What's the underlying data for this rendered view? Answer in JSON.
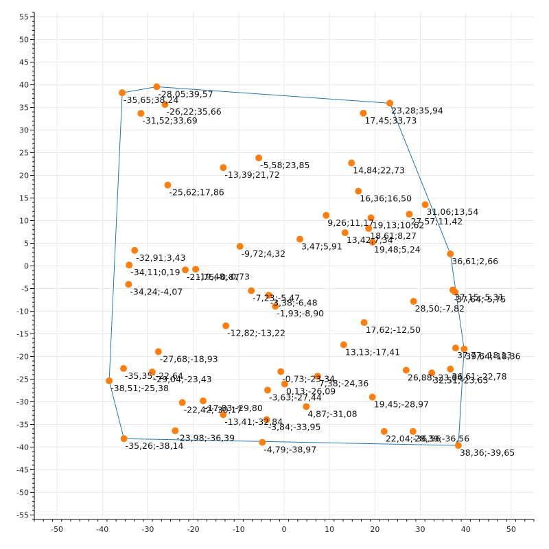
{
  "chart_data": {
    "type": "scatter",
    "title": "",
    "xlabel": "",
    "ylabel": "",
    "xlim": [
      -55,
      55
    ],
    "ylim": [
      -56,
      56
    ],
    "x_ticks": [
      -50,
      -40,
      -30,
      -20,
      -10,
      0,
      10,
      20,
      30,
      40,
      50
    ],
    "y_ticks": [
      55,
      50,
      45,
      40,
      35,
      30,
      25,
      20,
      15,
      10,
      5,
      0,
      -5,
      -10,
      -15,
      -20,
      -25,
      -30,
      -35,
      -40,
      -45,
      -50,
      -55
    ],
    "grid": true,
    "colors": {
      "points": "#ff7f0e",
      "hull": "#1f77b4",
      "grid": "#e8e8e8",
      "axis": "#000000"
    },
    "points": [
      {
        "x": -35.65,
        "y": 38.24,
        "label": "-35,65;38,24"
      },
      {
        "x": -28.05,
        "y": 39.57,
        "label": "-28,05;39,57"
      },
      {
        "x": -26.22,
        "y": 35.66,
        "label": "-26,22;35,66"
      },
      {
        "x": -31.52,
        "y": 33.69,
        "label": "-31,52;33,69"
      },
      {
        "x": 23.28,
        "y": 35.94,
        "label": "23,28;35,94"
      },
      {
        "x": 17.45,
        "y": 33.73,
        "label": "17,45;33,73"
      },
      {
        "x": -5.58,
        "y": 23.85,
        "label": "-5,58;23,85"
      },
      {
        "x": -13.39,
        "y": 21.72,
        "label": "-13,39;21,72"
      },
      {
        "x": 14.84,
        "y": 22.73,
        "label": "14,84;22,73"
      },
      {
        "x": -25.62,
        "y": 17.86,
        "label": "-25,62;17,86"
      },
      {
        "x": 16.36,
        "y": 16.5,
        "label": "16,36;16,50"
      },
      {
        "x": 31.06,
        "y": 13.54,
        "label": "31,06;13,54"
      },
      {
        "x": 9.26,
        "y": 11.17,
        "label": "9,26;11,17"
      },
      {
        "x": 19.13,
        "y": 10.62,
        "label": "19,13;10,62"
      },
      {
        "x": 27.57,
        "y": 11.42,
        "label": "27,57;11,42"
      },
      {
        "x": 18.61,
        "y": 8.27,
        "label": "18,61;8,27"
      },
      {
        "x": 13.42,
        "y": 7.34,
        "label": "13,42;7,34"
      },
      {
        "x": 3.47,
        "y": 5.91,
        "label": "3,47;5,91"
      },
      {
        "x": 19.48,
        "y": 5.24,
        "label": "19,48;5,24"
      },
      {
        "x": -9.72,
        "y": 4.32,
        "label": "-9,72;4,32"
      },
      {
        "x": -32.91,
        "y": 3.43,
        "label": "-32,91;3,43"
      },
      {
        "x": 36.61,
        "y": 2.66,
        "label": "36,61;2,66"
      },
      {
        "x": -34.11,
        "y": 0.19,
        "label": "-34,11;0,19"
      },
      {
        "x": -21.75,
        "y": -0.87,
        "label": "-21,75;-0,87"
      },
      {
        "x": -19.48,
        "y": -0.73,
        "label": "-19,48;-0,73"
      },
      {
        "x": -34.24,
        "y": -4.07,
        "label": "-34,24;-4,07"
      },
      {
        "x": 37.15,
        "y": -5.31,
        "label": "37,15;-5,31"
      },
      {
        "x": 37.64,
        "y": -5.75,
        "label": "37,64;-5,75"
      },
      {
        "x": -7.23,
        "y": -5.47,
        "label": "-7,23;-5,47"
      },
      {
        "x": -3.38,
        "y": -6.48,
        "label": "-3,38;-6,48"
      },
      {
        "x": 28.5,
        "y": -7.82,
        "label": "28,50;-7,82"
      },
      {
        "x": -1.93,
        "y": -8.9,
        "label": "-1,93;-8,90"
      },
      {
        "x": 17.62,
        "y": -12.5,
        "label": "17,62;-12,50"
      },
      {
        "x": -12.82,
        "y": -13.22,
        "label": "-12,82;-13,22"
      },
      {
        "x": 13.13,
        "y": -17.41,
        "label": "13,13;-17,41"
      },
      {
        "x": 37.77,
        "y": -18.13,
        "label": "37,77;-18,13"
      },
      {
        "x": 39.64,
        "y": -18.36,
        "label": "39,64;-18,36"
      },
      {
        "x": -27.68,
        "y": -18.93,
        "label": "-27,68;-18,93"
      },
      {
        "x": -35.35,
        "y": -22.64,
        "label": "-35,35;-22,64"
      },
      {
        "x": -29.04,
        "y": -23.43,
        "label": "-29,04;-23,43"
      },
      {
        "x": -0.73,
        "y": -23.34,
        "label": "-0,73;-23,34"
      },
      {
        "x": 26.88,
        "y": -23.04,
        "label": "26,88;-23,04"
      },
      {
        "x": 36.61,
        "y": -22.78,
        "label": "36,61;-22,78"
      },
      {
        "x": 32.51,
        "y": -23.63,
        "label": "32,51;-23,63"
      },
      {
        "x": 7.38,
        "y": -24.36,
        "label": "7,38;-24,36"
      },
      {
        "x": -38.51,
        "y": -25.38,
        "label": "-38,51;-25,38"
      },
      {
        "x": 0.13,
        "y": -26.09,
        "label": "0,13;-26,09"
      },
      {
        "x": -3.63,
        "y": -27.44,
        "label": "-3,63;-27,44"
      },
      {
        "x": 19.45,
        "y": -28.97,
        "label": "19,45;-28,97"
      },
      {
        "x": -22.42,
        "y": -30.17,
        "label": "-22,42;-30,17"
      },
      {
        "x": -17.83,
        "y": -29.8,
        "label": "-17,83;-29,80"
      },
      {
        "x": 4.87,
        "y": -31.08,
        "label": "4,87;-31,08"
      },
      {
        "x": -13.41,
        "y": -32.84,
        "label": "-13,41;-32,84"
      },
      {
        "x": -3.84,
        "y": -33.95,
        "label": "-3,84;-33,95"
      },
      {
        "x": -23.98,
        "y": -36.39,
        "label": "-23,98;-36,39"
      },
      {
        "x": 22.04,
        "y": -36.56,
        "label": "22,04;-36,56"
      },
      {
        "x": 28.39,
        "y": -36.56,
        "label": "28,39;-36,56"
      },
      {
        "x": -35.26,
        "y": -38.14,
        "label": "-35,26;-38,14"
      },
      {
        "x": -4.79,
        "y": -38.97,
        "label": "-4,79;-38,97"
      },
      {
        "x": 38.36,
        "y": -39.65,
        "label": "38,36;-39,65"
      }
    ],
    "hull": [
      [
        -35.65,
        38.24
      ],
      [
        -28.05,
        39.57
      ],
      [
        23.28,
        35.94
      ],
      [
        36.61,
        2.66
      ],
      [
        39.64,
        -18.36
      ],
      [
        38.36,
        -39.65
      ],
      [
        -35.26,
        -38.14
      ],
      [
        -38.51,
        -25.38
      ],
      [
        -35.65,
        38.24
      ]
    ]
  }
}
